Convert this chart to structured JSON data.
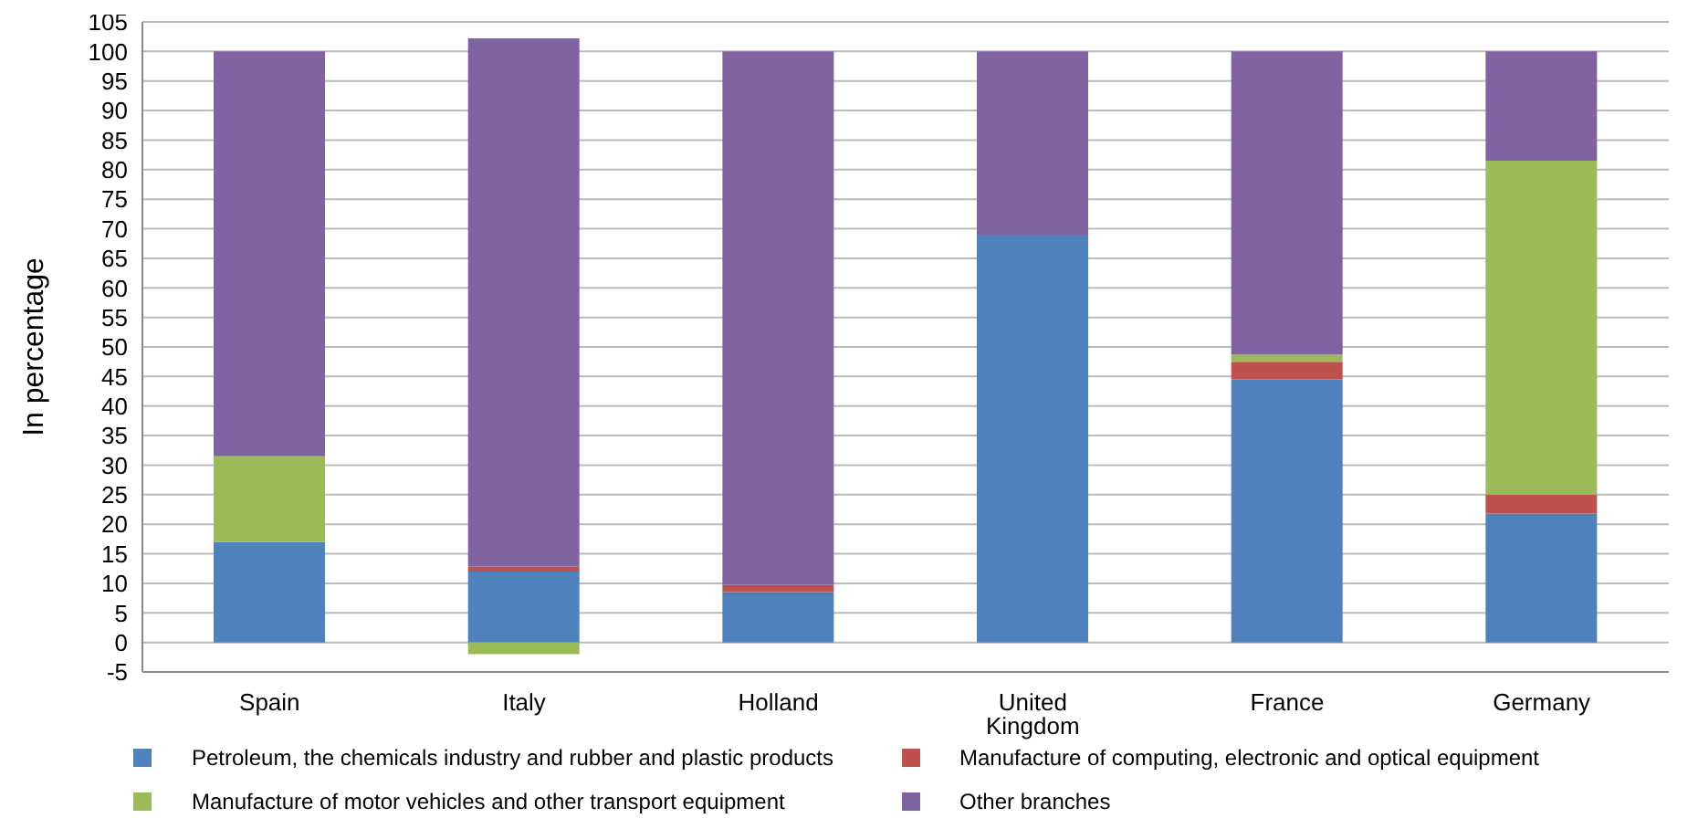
{
  "chart_data": {
    "type": "bar",
    "stacked": true,
    "ylabel": "In percentage",
    "categories": [
      "Spain",
      "Italy",
      "Holland",
      "United Kingdom",
      "France",
      "Germany"
    ],
    "series": [
      {
        "name": "Petroleum, the chemicals industry and rubber and plastic products",
        "color": "#4f81bd",
        "values": [
          17,
          12,
          8.5,
          69,
          44.5,
          21.8
        ]
      },
      {
        "name": "Manufacture of computing, electronic and optical equipment",
        "color": "#c0504d",
        "values": [
          0,
          0.8,
          1.2,
          0,
          3,
          3.2
        ]
      },
      {
        "name": "Manufacture of motor vehicles and other transport equipment",
        "color": "#9bbb59",
        "values": [
          14.5,
          -2,
          0,
          0,
          1.2,
          56.5
        ]
      },
      {
        "name": "Other branches",
        "color": "#8064a2",
        "values": [
          68.5,
          89.4,
          90.3,
          31,
          51.3,
          18.5
        ]
      }
    ],
    "ylim": [
      -5,
      105
    ],
    "yticks": [
      -5,
      0,
      5,
      10,
      15,
      20,
      25,
      30,
      35,
      40,
      45,
      50,
      55,
      60,
      65,
      70,
      75,
      80,
      85,
      90,
      95,
      100,
      105
    ],
    "grid": "y",
    "legend": "bottom"
  }
}
